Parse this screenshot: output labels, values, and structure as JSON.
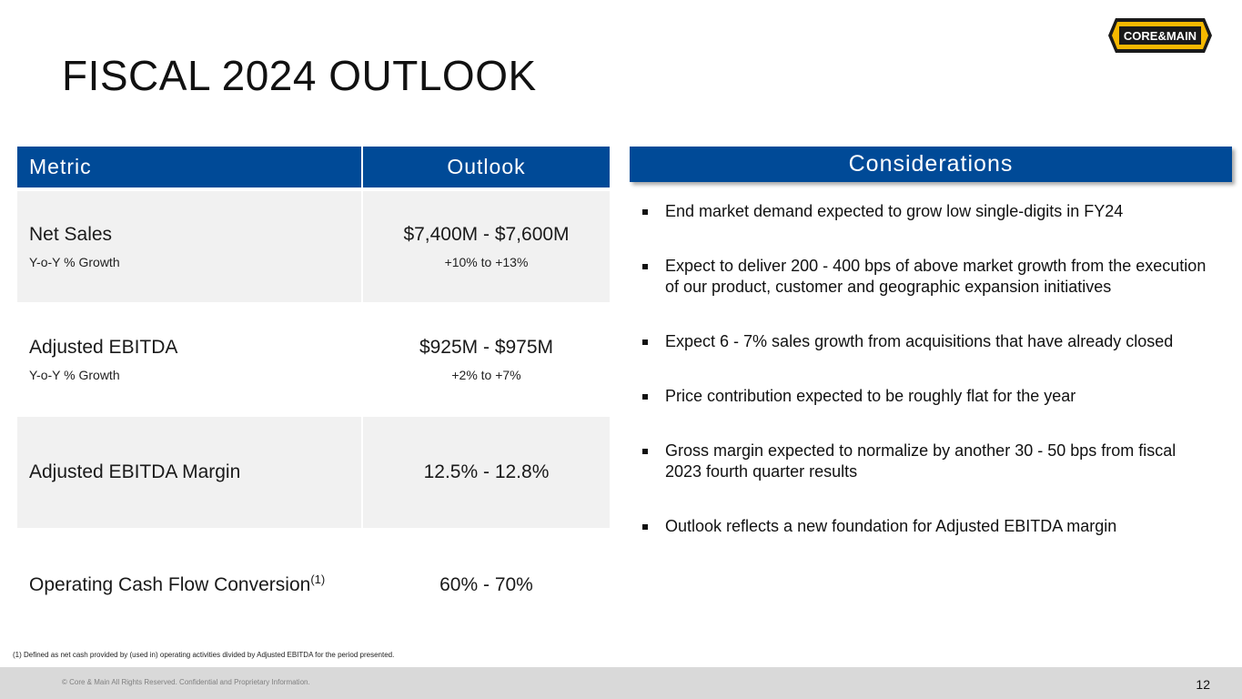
{
  "title": "FISCAL 2024 OUTLOOK",
  "logo": {
    "text": "CORE&MAIN",
    "colors": {
      "outline": "#1a1a1a",
      "fill": "#f5b800"
    }
  },
  "metrics_table": {
    "headers": {
      "metric": "Metric",
      "outlook": "Outlook"
    },
    "rows": [
      {
        "metric": "Net Sales",
        "metric_sub": "Y-o-Y % Growth",
        "outlook": "$7,400M - $7,600M",
        "outlook_sub": "+10% to +13%"
      },
      {
        "metric": "Adjusted EBITDA",
        "metric_sub": "Y-o-Y % Growth",
        "outlook": "$925M - $975M",
        "outlook_sub": "+2% to +7%"
      },
      {
        "metric": "Adjusted EBITDA Margin",
        "metric_sub": "",
        "outlook": "12.5% - 12.8%",
        "outlook_sub": ""
      },
      {
        "metric": "Operating Cash Flow Conversion",
        "metric_sup": "(1)",
        "metric_sub": "",
        "outlook": "60% - 70%",
        "outlook_sub": ""
      }
    ]
  },
  "considerations": {
    "header": "Considerations",
    "items": [
      "End market demand expected to grow low single-digits in FY24",
      "Expect to deliver 200 - 400 bps of above market growth from the execution of our product, customer and geographic expansion initiatives",
      "Expect 6 - 7% sales growth from acquisitions that have already closed",
      "Price contribution expected to be roughly flat for the year",
      "Gross margin expected to normalize by another 30 - 50 bps from fiscal 2023 fourth quarter results",
      "Outlook reflects a new foundation for Adjusted EBITDA margin"
    ]
  },
  "footnote": "(1) Defined as net cash provided by (used in) operating activities divided by Adjusted EBITDA for the period presented.",
  "footer": {
    "copyright": "© Core & Main  All Rights Reserved. Confidential and Proprietary Information.",
    "page_number": "12"
  },
  "colors": {
    "header_blue": "#004a97",
    "row_shade": "#f1f1f1",
    "footer_gray": "#d9d9d9"
  }
}
